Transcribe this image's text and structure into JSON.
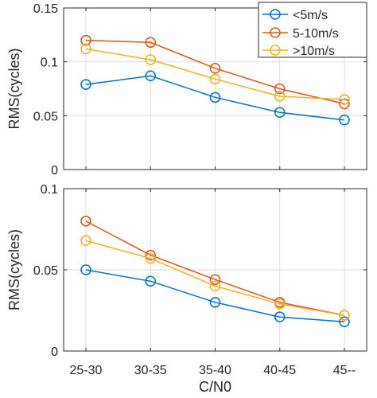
{
  "chart_data": [
    {
      "type": "line",
      "categories": [
        "25-30",
        "30-35",
        "35-40",
        "40-45",
        "45--"
      ],
      "ylabel": "RMS(cycles)",
      "xlabel": "",
      "ylim": [
        0,
        0.15
      ],
      "yticks": [
        "0",
        "0.05",
        "0.1",
        "0.15"
      ],
      "grid": true,
      "legend": "top-right",
      "series": [
        {
          "name": "<5m/s",
          "color": "#0072bd",
          "values": [
            0.079,
            0.087,
            0.067,
            0.053,
            0.046
          ]
        },
        {
          "name": "5-10m/s",
          "color": "#d95319",
          "values": [
            0.12,
            0.118,
            0.094,
            0.075,
            0.061
          ]
        },
        {
          "name": ">10m/s",
          "color": "#edb120",
          "values": [
            0.112,
            0.102,
            0.084,
            0.068,
            0.065
          ]
        }
      ]
    },
    {
      "type": "line",
      "categories": [
        "25-30",
        "30-35",
        "35-40",
        "40-45",
        "45--"
      ],
      "ylabel": "RMS(cycles)",
      "xlabel": "C/N0",
      "ylim": [
        0,
        0.1
      ],
      "yticks": [
        "0",
        "0.05",
        "0.1"
      ],
      "grid": true,
      "series": [
        {
          "color": "#0072bd",
          "values": [
            0.05,
            0.043,
            0.03,
            0.021,
            0.018
          ]
        },
        {
          "color": "#d95319",
          "values": [
            0.08,
            0.059,
            0.044,
            0.03,
            0.022
          ]
        },
        {
          "color": "#edb120",
          "values": [
            0.068,
            0.057,
            0.04,
            0.029,
            0.022
          ]
        }
      ]
    }
  ]
}
